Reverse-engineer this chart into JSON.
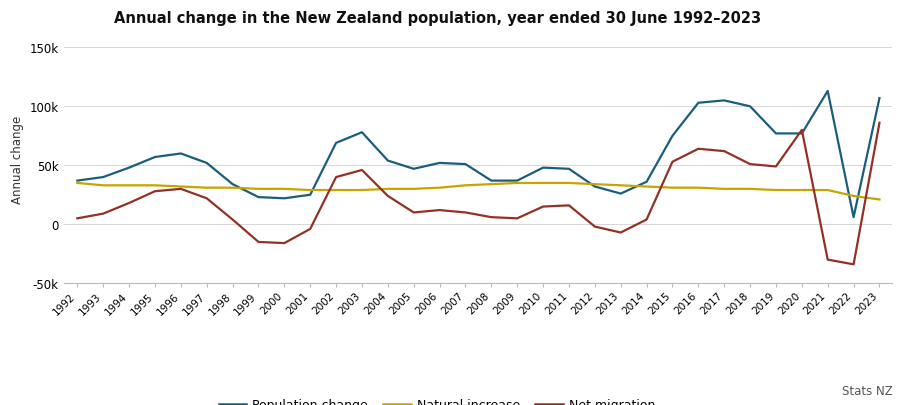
{
  "title": "Annual change in the New Zealand population, year ended 30 June 1992–2023",
  "ylabel": "Annual change",
  "years": [
    1992,
    1993,
    1994,
    1995,
    1996,
    1997,
    1998,
    1999,
    2000,
    2001,
    2002,
    2003,
    2004,
    2005,
    2006,
    2007,
    2008,
    2009,
    2010,
    2011,
    2012,
    2013,
    2014,
    2015,
    2016,
    2017,
    2018,
    2019,
    2020,
    2021,
    2022,
    2023
  ],
  "population_change": [
    37000,
    40000,
    48000,
    57000,
    60000,
    52000,
    34000,
    23000,
    22000,
    25000,
    69000,
    78000,
    54000,
    47000,
    52000,
    51000,
    37000,
    37000,
    48000,
    47000,
    32000,
    26000,
    36000,
    75000,
    103000,
    105000,
    100000,
    77000,
    77000,
    113000,
    6000,
    107000
  ],
  "natural_increase": [
    35000,
    33000,
    33000,
    33000,
    32000,
    31000,
    31000,
    30000,
    30000,
    29000,
    29000,
    29000,
    30000,
    30000,
    31000,
    33000,
    34000,
    35000,
    35000,
    35000,
    34000,
    33000,
    32000,
    31000,
    31000,
    30000,
    30000,
    29000,
    29000,
    29000,
    24000,
    21000
  ],
  "net_migration": [
    5000,
    9000,
    18000,
    28000,
    30000,
    22000,
    4000,
    -15000,
    -16000,
    -4000,
    40000,
    46000,
    24000,
    10000,
    12000,
    10000,
    6000,
    5000,
    15000,
    16000,
    -2000,
    -7000,
    4000,
    53000,
    64000,
    62000,
    51000,
    49000,
    80000,
    -30000,
    -34000,
    86000
  ],
  "pop_color": "#1b5e7b",
  "nat_color": "#c8a400",
  "mig_color": "#943126",
  "background_color": "#ffffff",
  "grid_color": "#d0d0d0",
  "ylim": [
    -50000,
    160000
  ],
  "yticks": [
    -50000,
    0,
    50000,
    100000,
    150000
  ],
  "legend_labels": [
    "Population change",
    "Natural increase",
    "Net migration"
  ],
  "source_text": "Stats NZ"
}
